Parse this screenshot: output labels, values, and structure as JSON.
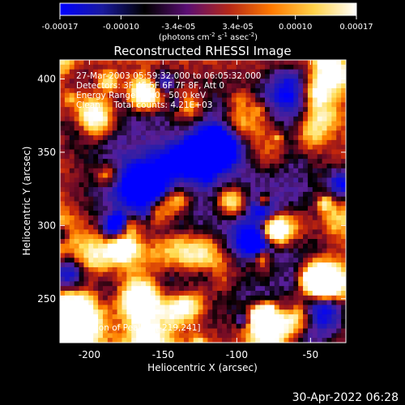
{
  "colorbar": {
    "ticks": [
      "-0.00017",
      "-0.00010",
      "-3.4e-05",
      "3.4e-05",
      "0.00010",
      "0.00017"
    ],
    "tick_values": [
      -0.00017,
      -0.0001,
      -3.4e-05,
      3.4e-05,
      0.0001,
      0.00017
    ],
    "range": [
      -0.00017,
      0.00017
    ],
    "units_html": "(photons cm<tspan baseline-shift='super' font-size='7'>-2</tspan> s<tspan baseline-shift='super' font-size='7'>-1</tspan> asec<tspan baseline-shift='super' font-size='7'>-2</tspan>)",
    "stops": [
      "#0000ff",
      "#1a1a9e",
      "#000000",
      "#5a0e73",
      "#b52818",
      "#ff7a00",
      "#ffd24a",
      "#ffffff"
    ]
  },
  "chart_data": {
    "type": "heatmap",
    "title": "Reconstructed RHESSI Image",
    "xlabel": "Heliocentric X (arcsec)",
    "ylabel": "Heliocentric Y (arcsec)",
    "xlim": [
      -220,
      -26
    ],
    "ylim": [
      220,
      413
    ],
    "x_ticks": [
      -200,
      -150,
      -100,
      -50
    ],
    "y_ticks": [
      250,
      300,
      350,
      400
    ],
    "info_lines": [
      "27-Mar-2003 05:59:32.000 to 06:05:32.000",
      "Detectors: 3F 4F 5F 6F 7F 8F, Att 0",
      "Energy Range: 25.0 - 50.0 keV",
      "Clean     Total counts: 4.21E+03"
    ],
    "peak_label": "Position of Peak = [-219,241]",
    "peak": [
      -219,
      241
    ]
  },
  "footer": {
    "timestamp": "30-Apr-2022 06:28"
  }
}
